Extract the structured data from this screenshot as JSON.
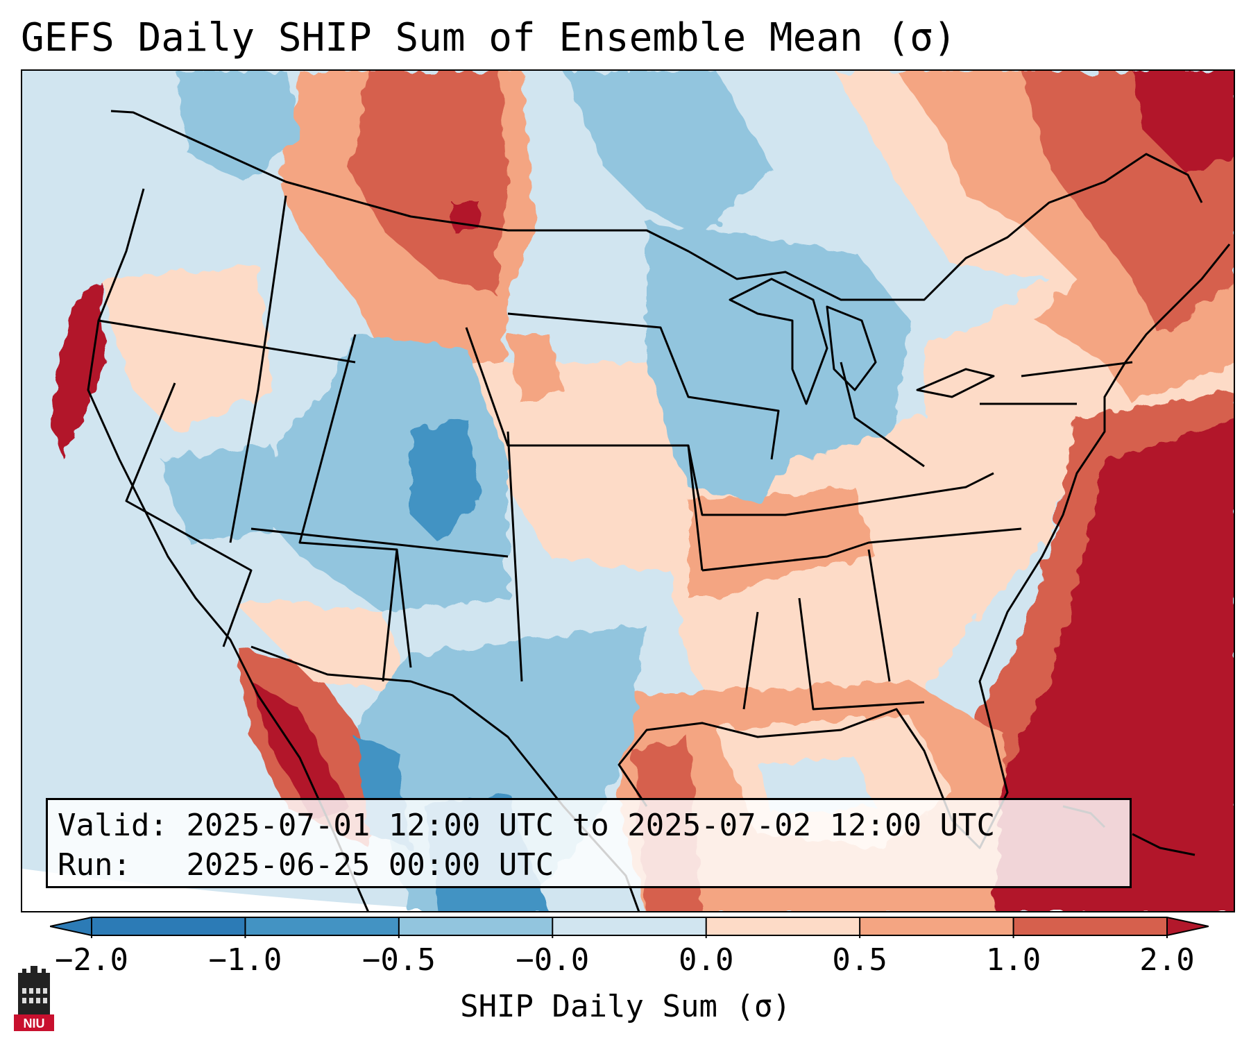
{
  "title": "GEFS Daily SHIP Sum of Ensemble Mean (σ)",
  "info": {
    "valid_label": "Valid:",
    "valid_value": "2025-07-01 12:00 UTC to 2025-07-02 12:00 UTC",
    "run_label": "Run:",
    "run_value": "2025-06-25 00:00 UTC"
  },
  "colorbar": {
    "label": "SHIP Daily Sum (σ)",
    "ticks": [
      "−2.0",
      "−1.0",
      "−0.5",
      "−0.0",
      "0.0",
      "0.5",
      "1.0",
      "2.0"
    ],
    "colors": [
      "#2c7bb6",
      "#4393c3",
      "#92c5de",
      "#d1e5f0",
      "#fddbc7",
      "#f4a582",
      "#d6604d",
      "#b2182b"
    ],
    "extend": "both"
  },
  "logo": {
    "text": "NIU"
  },
  "map": {
    "region": "Contiguous United States",
    "palette": {
      "ocean_below": "#d1e5f0",
      "strong_neg": "#2c7bb6",
      "neg": "#4393c3",
      "weak_neg": "#92c5de",
      "near_neg": "#d1e5f0",
      "near_pos": "#fddbc7",
      "weak_pos": "#f4a582",
      "pos": "#d6604d",
      "strong_pos": "#b2182b"
    }
  }
}
